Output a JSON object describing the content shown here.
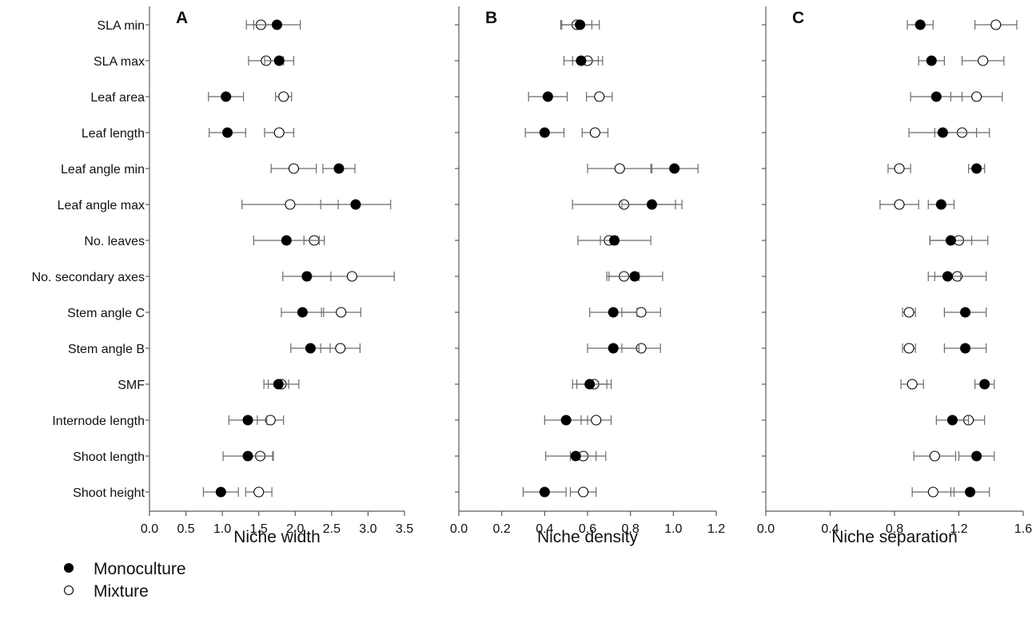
{
  "chart_data": [
    {
      "type": "scatter",
      "panel": "A",
      "xlabel": "Niche width",
      "xlim": [
        0.0,
        3.5
      ],
      "xticks": [
        "0.0",
        "0.5",
        "1.0",
        "1.5",
        "2.0",
        "2.5",
        "3.0",
        "3.5"
      ],
      "categories": [
        "SLA min",
        "SLA max",
        "Leaf area",
        "Leaf length",
        "Leaf angle min",
        "Leaf angle max",
        "No. leaves",
        "No. secondary axes",
        "Stem angle C",
        "Stem angle B",
        "SMF",
        "Internode length",
        "Shoot length",
        "Shoot height"
      ],
      "series": [
        {
          "name": "Monoculture",
          "values": [
            1.75,
            1.78,
            1.05,
            1.07,
            2.6,
            2.83,
            1.88,
            2.16,
            2.1,
            2.21,
            1.77,
            1.35,
            1.35,
            0.98
          ],
          "error": [
            0.32,
            0.2,
            0.24,
            0.25,
            0.22,
            0.48,
            0.45,
            0.33,
            0.29,
            0.27,
            0.14,
            0.26,
            0.34,
            0.24
          ]
        },
        {
          "name": "Mixture",
          "values": [
            1.53,
            1.6,
            1.84,
            1.78,
            1.98,
            1.93,
            2.26,
            2.78,
            2.63,
            2.62,
            1.81,
            1.66,
            1.52,
            1.5
          ],
          "error": [
            0.2,
            0.24,
            0.11,
            0.2,
            0.31,
            0.66,
            0.14,
            0.58,
            0.27,
            0.27,
            0.24,
            0.18,
            0.18,
            0.18
          ]
        }
      ]
    },
    {
      "type": "scatter",
      "panel": "B",
      "xlabel": "Niche density",
      "xlim": [
        0.0,
        1.2
      ],
      "xticks": [
        "0.0",
        "0.2",
        "0.4",
        "0.6",
        "0.8",
        "1.0",
        "1.2"
      ],
      "categories": [
        "SLA min",
        "SLA max",
        "Leaf area",
        "Leaf length",
        "Leaf angle min",
        "Leaf angle max",
        "No. leaves",
        "No. secondary axes",
        "Stem angle C",
        "Stem angle B",
        "SMF",
        "Internode length",
        "Shoot length",
        "Shoot height"
      ],
      "series": [
        {
          "name": "Monoculture",
          "values": [
            0.565,
            0.57,
            0.415,
            0.4,
            1.005,
            0.9,
            0.725,
            0.82,
            0.72,
            0.72,
            0.61,
            0.5,
            0.545,
            0.4
          ],
          "error": [
            0.09,
            0.08,
            0.09,
            0.09,
            0.11,
            0.14,
            0.17,
            0.13,
            0.11,
            0.12,
            0.08,
            0.1,
            0.14,
            0.1
          ]
        },
        {
          "name": "Mixture",
          "values": [
            0.55,
            0.6,
            0.655,
            0.635,
            0.75,
            0.77,
            0.7,
            0.77,
            0.85,
            0.85,
            0.63,
            0.64,
            0.58,
            0.58
          ],
          "error": [
            0.07,
            0.07,
            0.06,
            0.06,
            0.15,
            0.24,
            0.04,
            0.07,
            0.09,
            0.09,
            0.08,
            0.07,
            0.06,
            0.06
          ]
        }
      ]
    },
    {
      "type": "scatter",
      "panel": "C",
      "xlabel": "Niche separation",
      "xlim": [
        0.0,
        1.6
      ],
      "xticks": [
        "0.0",
        "0.4",
        "0.8",
        "1.2",
        "1.6"
      ],
      "categories": [
        "SLA min",
        "SLA max",
        "Leaf area",
        "Leaf length",
        "Leaf angle min",
        "Leaf angle max",
        "No. leaves",
        "No. secondary axes",
        "Stem angle C",
        "Stem angle B",
        "SMF",
        "Internode length",
        "Shoot length",
        "Shoot height"
      ],
      "series": [
        {
          "name": "Monoculture",
          "values": [
            0.96,
            1.03,
            1.06,
            1.1,
            1.31,
            1.09,
            1.15,
            1.13,
            1.24,
            1.24,
            1.36,
            1.16,
            1.31,
            1.27
          ],
          "error": [
            0.08,
            0.08,
            0.16,
            0.21,
            0.05,
            0.08,
            0.13,
            0.08,
            0.13,
            0.13,
            0.06,
            0.1,
            0.11,
            0.12
          ]
        },
        {
          "name": "Mixture",
          "values": [
            1.43,
            1.35,
            1.31,
            1.22,
            0.83,
            0.83,
            1.2,
            1.19,
            0.89,
            0.89,
            0.91,
            1.26,
            1.05,
            1.04
          ],
          "error": [
            0.13,
            0.13,
            0.16,
            0.17,
            0.07,
            0.12,
            0.18,
            0.18,
            0.04,
            0.04,
            0.07,
            0.1,
            0.13,
            0.13
          ]
        }
      ]
    }
  ],
  "legend": {
    "items": [
      {
        "name": "Monoculture",
        "marker": "filled"
      },
      {
        "name": "Mixture",
        "marker": "open"
      }
    ],
    "placement": "bottom-left"
  },
  "colors": {
    "monoculture_fill": "#000000",
    "mixture_fill": "#ffffff",
    "marker_stroke": "#000000",
    "error_bar": "#6b6b6b",
    "axis": "#5a5a5a"
  }
}
